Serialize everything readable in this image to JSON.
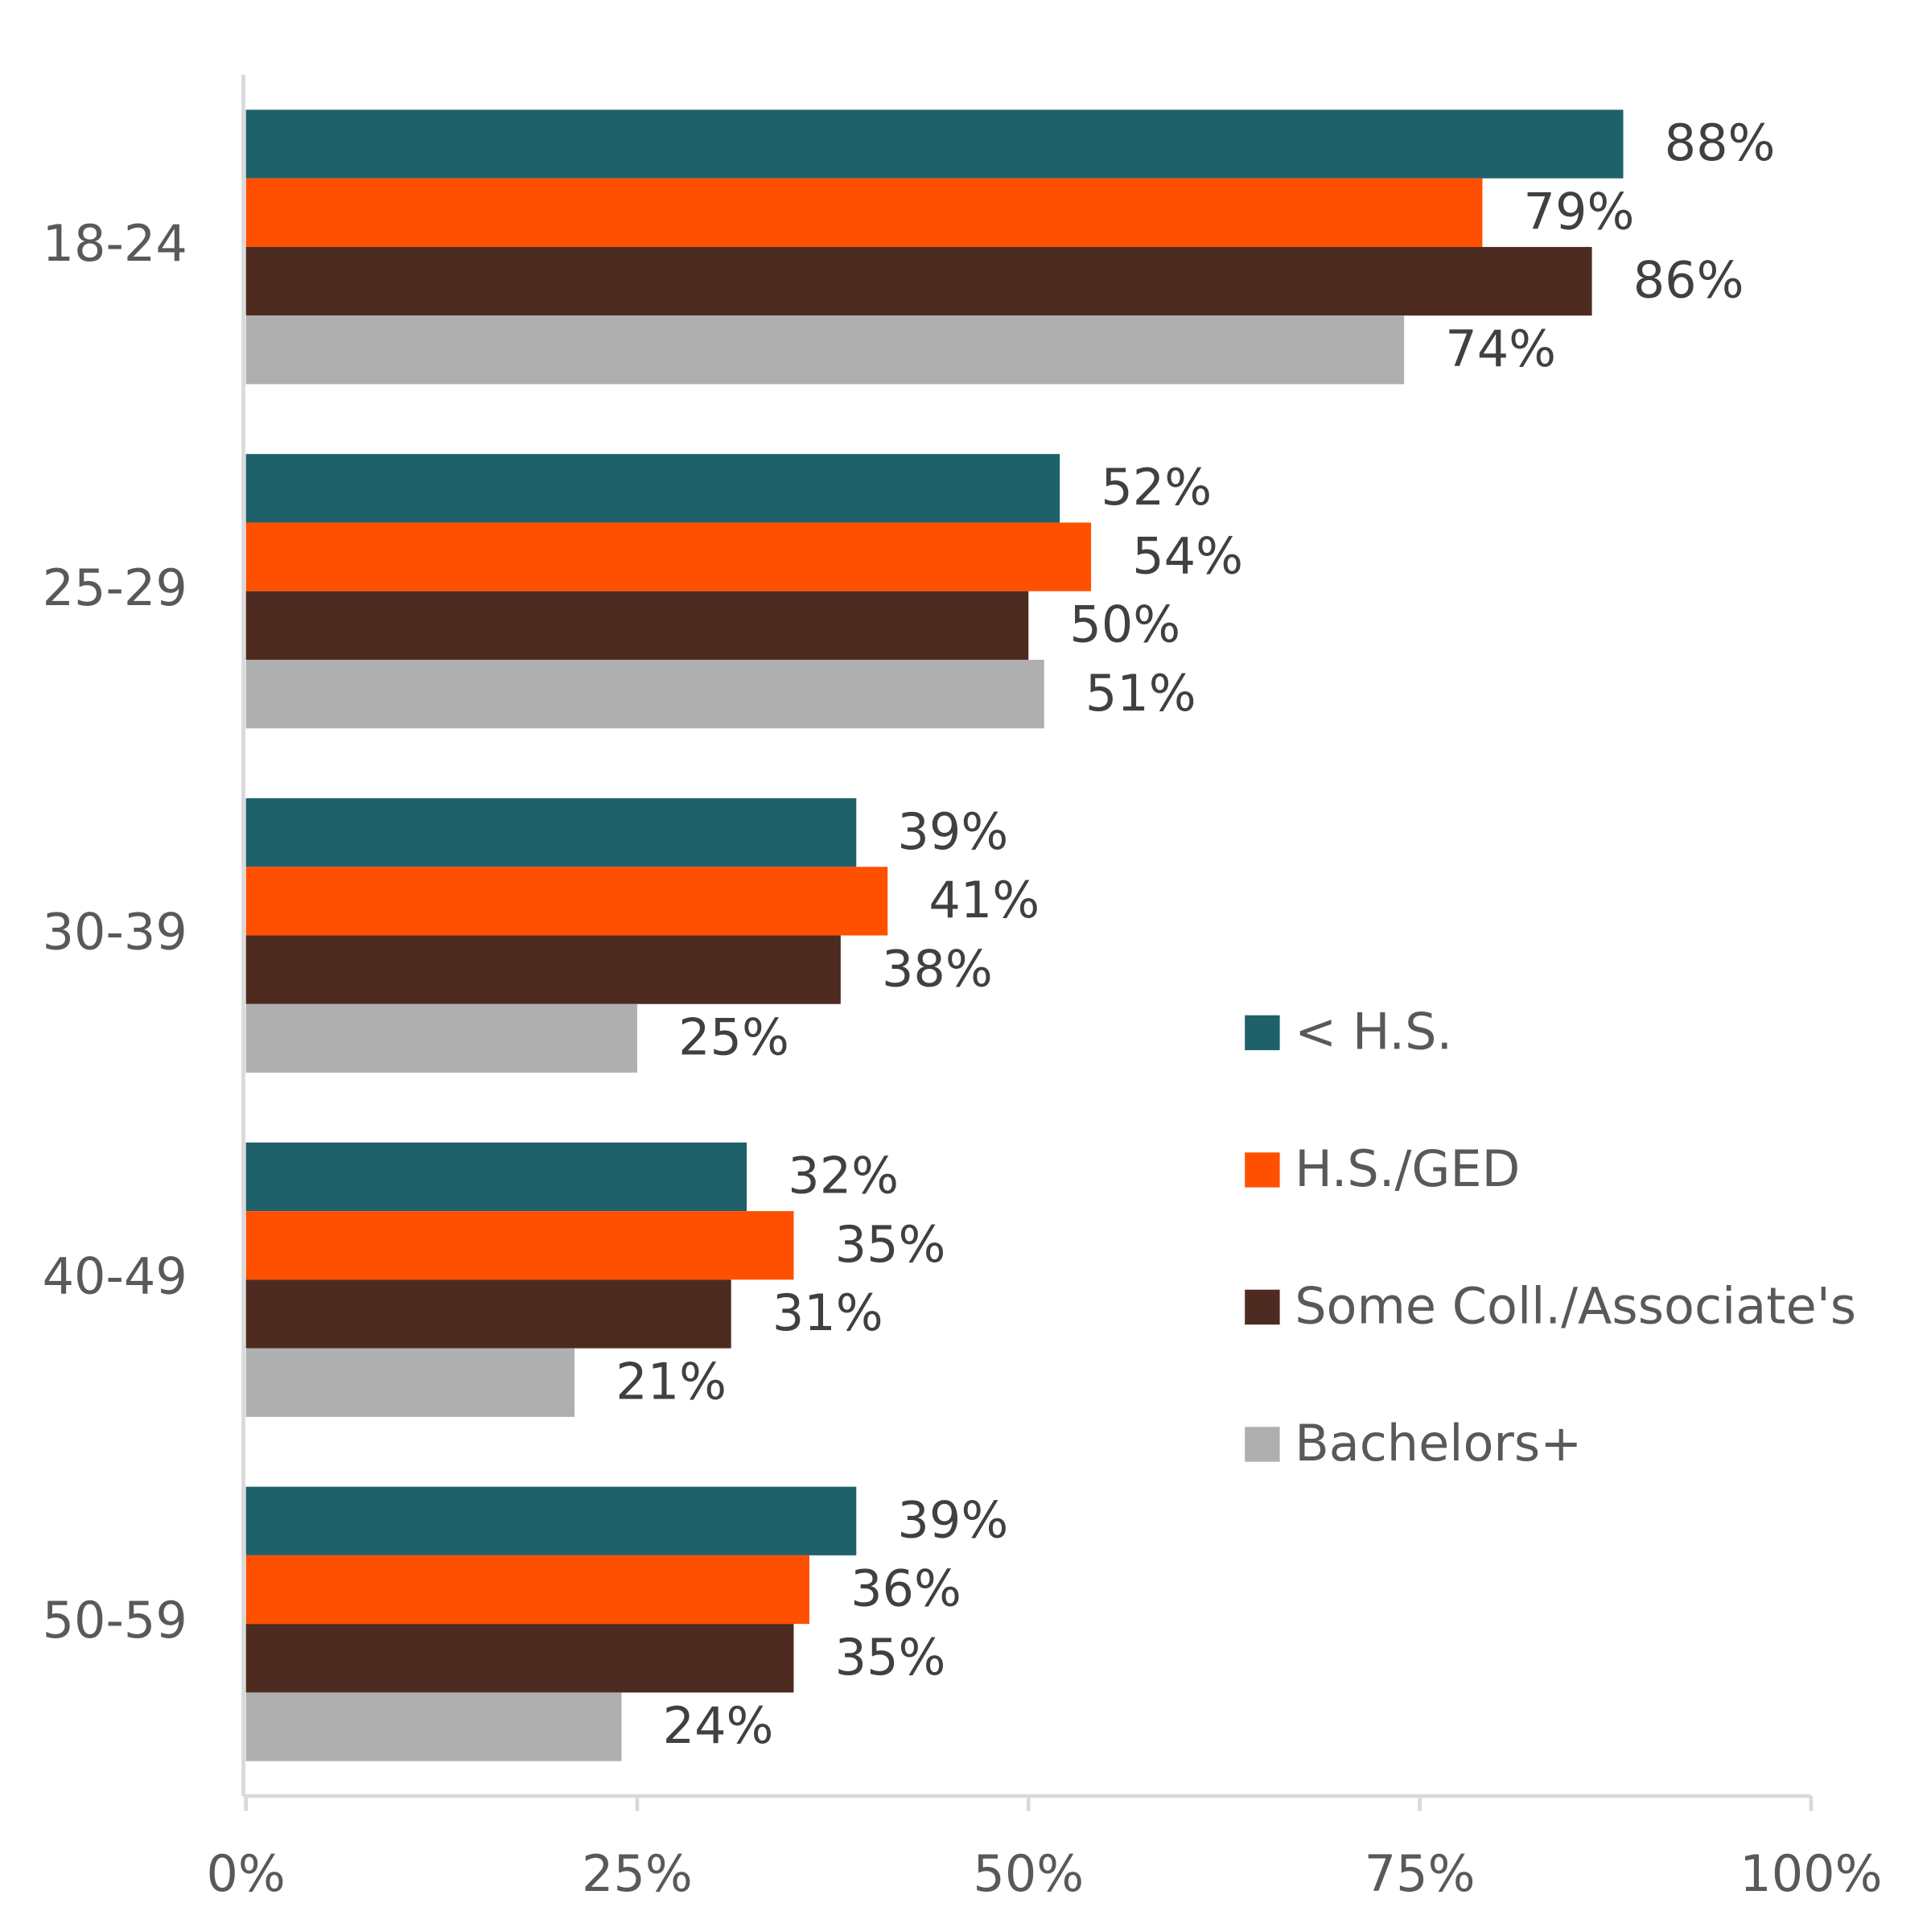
{
  "chart_data": {
    "type": "hbar",
    "categories": [
      "18-24",
      "25-29",
      "30-39",
      "40-49",
      "50-59"
    ],
    "series": [
      {
        "name": "< H.S.",
        "color": "#1f616b",
        "values": [
          88,
          52,
          39,
          32,
          39
        ],
        "value_labels": [
          "88%",
          "52%",
          "39%",
          "32%",
          "39%"
        ]
      },
      {
        "name": "H.S./GED",
        "color": "#ff5000",
        "values": [
          79,
          54,
          41,
          35,
          36
        ],
        "value_labels": [
          "79%",
          "54%",
          "41%",
          "35%",
          "36%"
        ]
      },
      {
        "name": "Some Coll./Associate's",
        "color": "#4d2b20",
        "values": [
          86,
          50,
          38,
          31,
          35
        ],
        "value_labels": [
          "86%",
          "50%",
          "38%",
          "31%",
          "35%"
        ]
      },
      {
        "name": "Bachelors+",
        "color": "#afafaf",
        "values": [
          74,
          51,
          25,
          21,
          24
        ],
        "value_labels": [
          "74%",
          "51%",
          "25%",
          "21%",
          "24%"
        ]
      }
    ],
    "xlim": [
      0,
      100
    ],
    "xticks": [
      {
        "value": 0,
        "label": "0%"
      },
      {
        "value": 25,
        "label": "25%"
      },
      {
        "value": 50,
        "label": "50%"
      },
      {
        "value": 75,
        "label": "75%"
      },
      {
        "value": 100,
        "label": "100%"
      }
    ],
    "grid": false,
    "legend": "right"
  }
}
